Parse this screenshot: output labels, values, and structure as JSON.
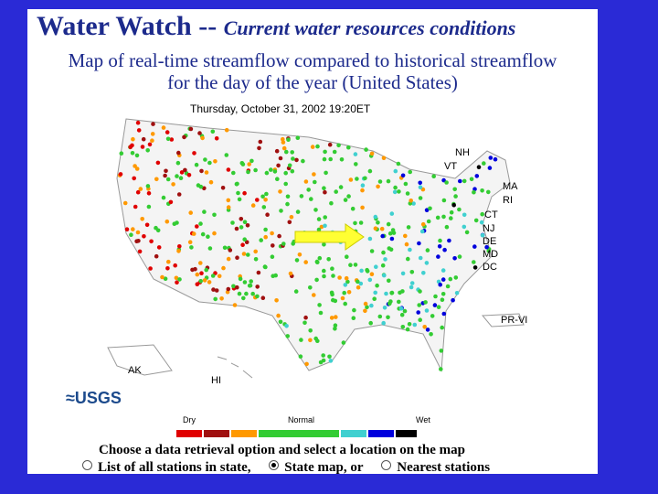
{
  "header": {
    "title": "Water Watch --",
    "subtitle": "Current water resources conditions",
    "heading_1": "Map of real-time streamflow compared to historical streamflow",
    "heading_2": "for the day of the year (United States)"
  },
  "map": {
    "timestamp": "Thursday, October 31, 2002 19:20ET",
    "logo": "≈USGS",
    "state_labels": [
      "NH",
      "VT",
      "MA",
      "RI",
      "CT",
      "NJ",
      "DE",
      "MD",
      "DC",
      "PR-VI",
      "AK",
      "HI"
    ]
  },
  "legend": {
    "labels": [
      "Dry",
      "Normal",
      "Wet"
    ]
  },
  "footer": {
    "instructions": "Choose a data retrieval option and select a location on the map",
    "options": [
      "List of all stations in state,",
      "State map, or",
      "Nearest stations"
    ]
  }
}
